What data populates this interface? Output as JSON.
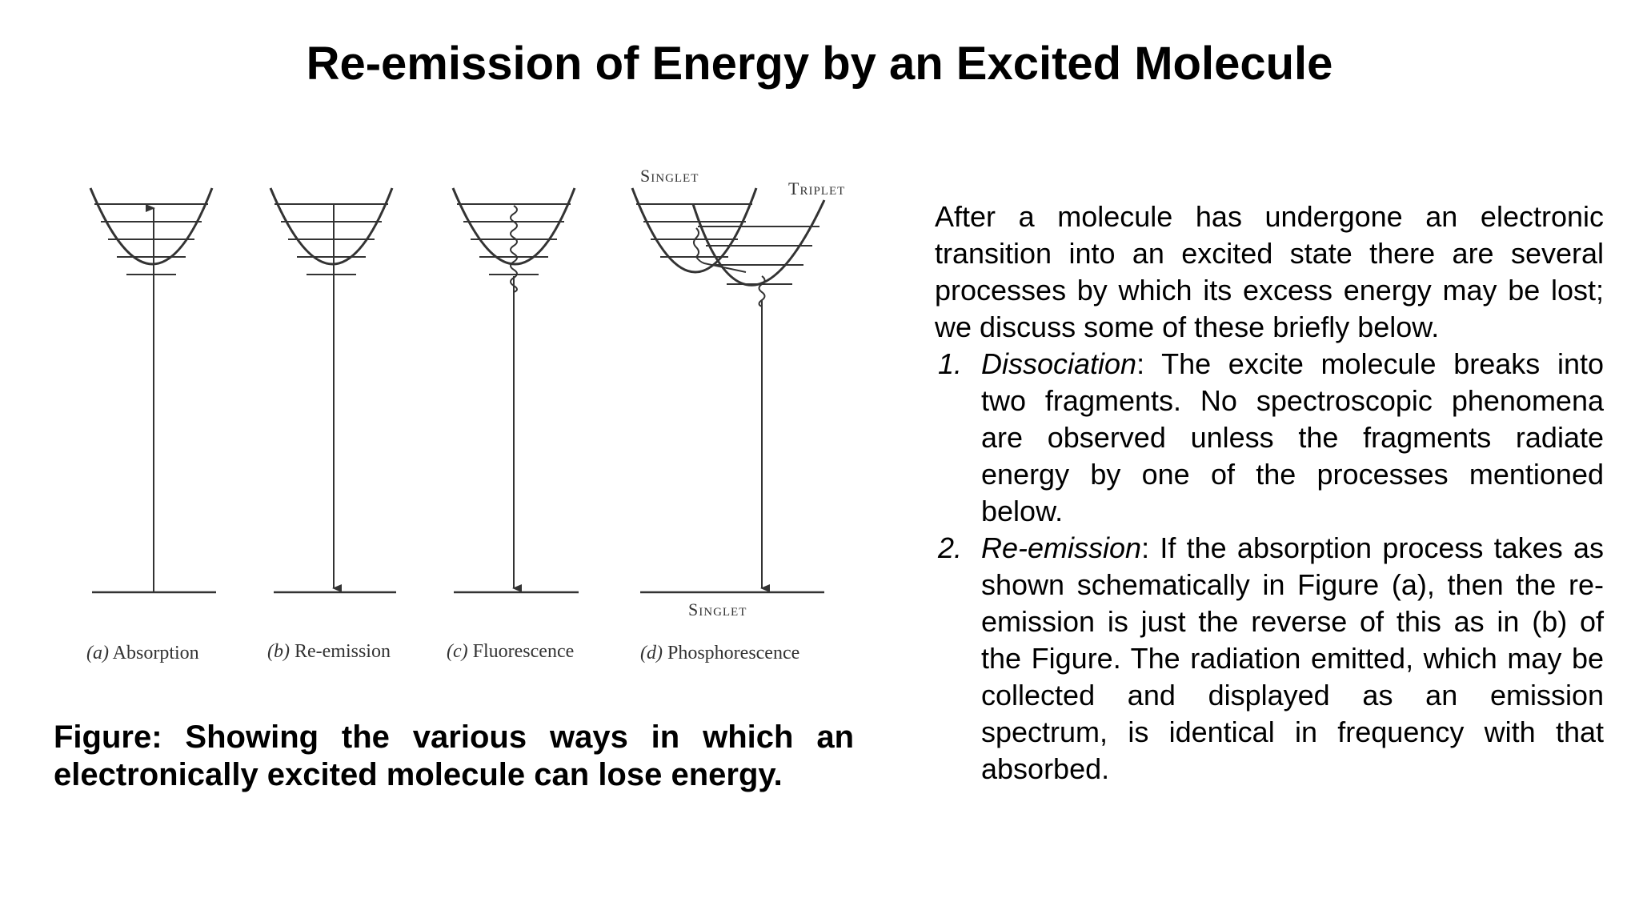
{
  "title": "Re-emission of Energy by an Excited Molecule",
  "figure": {
    "panels": [
      {
        "letter": "(a)",
        "name": "Absorption"
      },
      {
        "letter": "(b)",
        "name": "Re-emission"
      },
      {
        "letter": "(c)",
        "name": "Fluorescence"
      },
      {
        "letter": "(d)",
        "name": "Phosphorescence"
      }
    ],
    "singlet_label": "Singlet",
    "triplet_label": "Triplet",
    "ground_singlet_label": "Singlet"
  },
  "caption": "Figure: Showing the various ways in which an electronically excited molecule can lose energy.",
  "body": {
    "intro": "After a molecule has undergone an electronic transition into an excited state there are several processes by which its excess energy may be lost; we discuss some of these briefly below.",
    "items": [
      {
        "num": "1.",
        "term": "Dissociation",
        "text": ": The excite molecule breaks into two fragments. No spectroscopic phenomena are observed unless the fragments radiate energy by one of the processes mentioned below."
      },
      {
        "num": "2.",
        "term": "Re-emission",
        "text": ": If the absorption process takes as shown schematically in Figure (a), then the re-emission is just the reverse of this as in (b) of the Figure. The radiation emitted, which may be collected and displayed as an emission spectrum, is identical in frequency with that absorbed."
      }
    ]
  }
}
